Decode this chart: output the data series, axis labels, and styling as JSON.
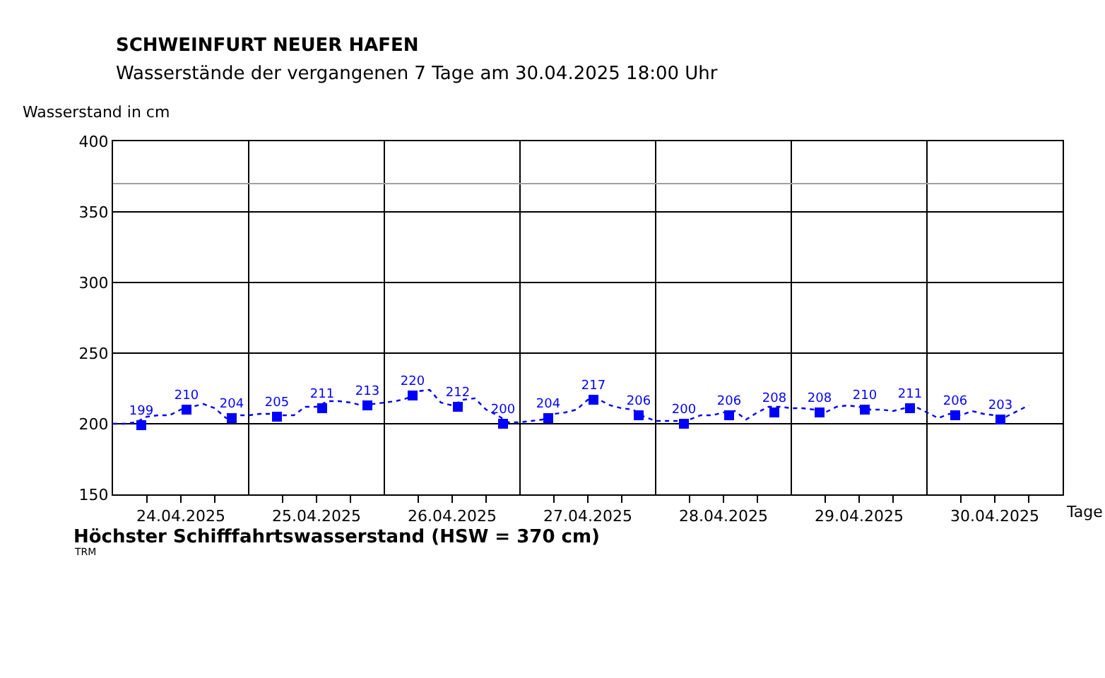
{
  "chart_data": {
    "type": "line",
    "title": "SCHWEINFURT NEUER HAFEN",
    "subtitle": "Wasserstände der vergangenen 7 Tage am 30.04.2025 18:00 Uhr",
    "xlabel": "Tage",
    "ylabel": "Wasserstand in cm",
    "xlim": [
      "2025-04-24T00:00",
      "2025-05-01T00:00"
    ],
    "xticks": [
      {
        "value": "2025-04-24T06:00",
        "label": null
      },
      {
        "value": "2025-04-24T12:00",
        "label": "24.04.2025"
      },
      {
        "value": "2025-04-24T18:00",
        "label": null
      },
      {
        "value": "2025-04-25T06:00",
        "label": null
      },
      {
        "value": "2025-04-25T12:00",
        "label": "25.04.2025"
      },
      {
        "value": "2025-04-25T18:00",
        "label": null
      },
      {
        "value": "2025-04-26T06:00",
        "label": null
      },
      {
        "value": "2025-04-26T12:00",
        "label": "26.04.2025"
      },
      {
        "value": "2025-04-26T18:00",
        "label": null
      },
      {
        "value": "2025-04-27T06:00",
        "label": null
      },
      {
        "value": "2025-04-27T12:00",
        "label": "27.04.2025"
      },
      {
        "value": "2025-04-27T18:00",
        "label": null
      },
      {
        "value": "2025-04-28T06:00",
        "label": null
      },
      {
        "value": "2025-04-28T12:00",
        "label": "28.04.2025"
      },
      {
        "value": "2025-04-28T18:00",
        "label": null
      },
      {
        "value": "2025-04-29T06:00",
        "label": null
      },
      {
        "value": "2025-04-29T12:00",
        "label": "29.04.2025"
      },
      {
        "value": "2025-04-29T18:00",
        "label": null
      },
      {
        "value": "2025-04-30T06:00",
        "label": null
      },
      {
        "value": "2025-04-30T12:00",
        "label": "30.04.2025"
      },
      {
        "value": "2025-04-30T18:00",
        "label": null
      }
    ],
    "ylim": [
      150,
      400
    ],
    "yticks": [
      150,
      200,
      250,
      300,
      350,
      400
    ],
    "grid": "y",
    "ref_lines": [
      {
        "axis": "x",
        "value": "2025-04-25T00:00",
        "color": "#000000"
      },
      {
        "axis": "x",
        "value": "2025-04-26T00:00",
        "color": "#000000"
      },
      {
        "axis": "x",
        "value": "2025-04-27T00:00",
        "color": "#000000"
      },
      {
        "axis": "x",
        "value": "2025-04-28T00:00",
        "color": "#000000"
      },
      {
        "axis": "x",
        "value": "2025-04-29T00:00",
        "color": "#000000"
      },
      {
        "axis": "x",
        "value": "2025-04-30T00:00",
        "color": "#000000"
      },
      {
        "axis": "y",
        "value": 370,
        "color": "#a0a0a0"
      }
    ],
    "annotations": [
      "Höchster Schifffahrtswasserstand (HSW = 370 cm)",
      "TRM"
    ],
    "series": [
      {
        "color": "#0000ff",
        "line_style": "dotted",
        "marker": "none",
        "x": [
          "2025-04-24T00:00",
          "2025-04-24T02:00",
          "2025-04-24T04:00",
          "2025-04-24T06:00",
          "2025-04-24T08:00",
          "2025-04-24T10:00",
          "2025-04-24T12:00",
          "2025-04-24T14:00",
          "2025-04-24T16:00",
          "2025-04-24T18:00",
          "2025-04-24T20:00",
          "2025-04-24T22:00",
          "2025-04-25T00:00",
          "2025-04-25T02:00",
          "2025-04-25T04:00",
          "2025-04-25T06:00",
          "2025-04-25T08:00",
          "2025-04-25T10:00",
          "2025-04-25T12:00",
          "2025-04-25T14:00",
          "2025-04-25T16:00",
          "2025-04-25T18:00",
          "2025-04-25T20:00",
          "2025-04-25T22:00",
          "2025-04-26T00:00",
          "2025-04-26T02:00",
          "2025-04-26T04:00",
          "2025-04-26T06:00",
          "2025-04-26T08:00",
          "2025-04-26T10:00",
          "2025-04-26T12:00",
          "2025-04-26T14:00",
          "2025-04-26T16:00",
          "2025-04-26T18:00",
          "2025-04-26T20:00",
          "2025-04-26T22:00",
          "2025-04-27T00:00",
          "2025-04-27T02:00",
          "2025-04-27T04:00",
          "2025-04-27T06:00",
          "2025-04-27T08:00",
          "2025-04-27T10:00",
          "2025-04-27T12:00",
          "2025-04-27T14:00",
          "2025-04-27T16:00",
          "2025-04-27T18:00",
          "2025-04-27T20:00",
          "2025-04-27T22:00",
          "2025-04-28T00:00",
          "2025-04-28T02:00",
          "2025-04-28T04:00",
          "2025-04-28T06:00",
          "2025-04-28T08:00",
          "2025-04-28T10:00",
          "2025-04-28T12:00",
          "2025-04-28T14:00",
          "2025-04-28T16:00",
          "2025-04-28T18:00",
          "2025-04-28T20:00",
          "2025-04-28T22:00",
          "2025-04-29T00:00",
          "2025-04-29T02:00",
          "2025-04-29T04:00",
          "2025-04-29T06:00",
          "2025-04-29T08:00",
          "2025-04-29T10:00",
          "2025-04-29T12:00",
          "2025-04-29T14:00",
          "2025-04-29T16:00",
          "2025-04-29T18:00",
          "2025-04-29T20:00",
          "2025-04-29T22:00",
          "2025-04-30T00:00",
          "2025-04-30T02:00",
          "2025-04-30T04:00",
          "2025-04-30T06:00",
          "2025-04-30T08:00",
          "2025-04-30T10:00",
          "2025-04-30T12:00",
          "2025-04-30T14:00",
          "2025-04-30T16:00",
          "2025-04-30T18:00"
        ],
        "values": [
          200,
          200,
          201,
          205,
          206,
          206,
          210,
          212,
          214,
          211,
          204,
          206,
          206,
          207,
          207,
          206,
          206,
          212,
          212,
          216,
          216,
          215,
          213,
          214,
          215,
          216,
          218,
          223,
          224,
          215,
          213,
          217,
          218,
          210,
          206,
          201,
          201,
          202,
          203,
          207,
          208,
          210,
          217,
          217,
          213,
          211,
          210,
          205,
          202,
          202,
          202,
          203,
          206,
          206,
          208,
          209,
          203,
          208,
          212,
          212,
          211,
          211,
          210,
          208,
          212,
          213,
          212,
          210,
          210,
          209,
          211,
          212,
          208,
          204,
          207,
          206,
          209,
          207,
          206,
          205,
          209,
          213
        ]
      },
      {
        "type": "scatter",
        "color": "#0000ff",
        "marker": "square",
        "x": [
          "2025-04-24T05:00",
          "2025-04-24T13:00",
          "2025-04-24T21:00",
          "2025-04-25T05:00",
          "2025-04-25T13:00",
          "2025-04-25T21:00",
          "2025-04-26T05:00",
          "2025-04-26T13:00",
          "2025-04-26T21:00",
          "2025-04-27T05:00",
          "2025-04-27T13:00",
          "2025-04-27T21:00",
          "2025-04-28T05:00",
          "2025-04-28T13:00",
          "2025-04-28T21:00",
          "2025-04-29T05:00",
          "2025-04-29T13:00",
          "2025-04-29T21:00",
          "2025-04-30T05:00",
          "2025-04-30T13:00"
        ],
        "values": [
          199,
          210,
          204,
          205,
          211,
          213,
          220,
          212,
          200,
          204,
          217,
          206,
          200,
          206,
          208,
          208,
          210,
          211,
          206,
          203
        ],
        "value_labels": [
          "199",
          "210",
          "204",
          "205",
          "211",
          "213",
          "220",
          "212",
          "200",
          "204",
          "217",
          "206",
          "200",
          "206",
          "208",
          "208",
          "210",
          "211",
          "206",
          "203"
        ]
      }
    ]
  }
}
